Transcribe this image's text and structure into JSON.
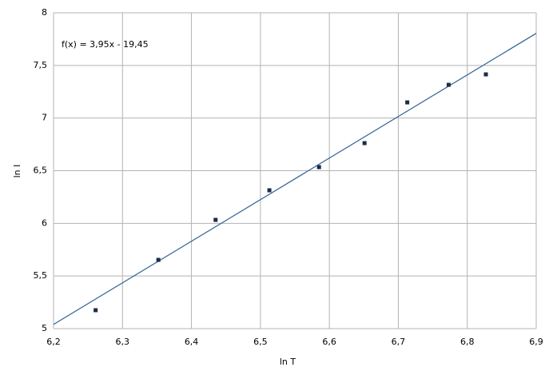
{
  "chart_data": {
    "type": "scatter",
    "annotation": "f(x) = 3,95x - 19,45",
    "xlabel": "ln T",
    "ylabel": "ln I",
    "xlim": [
      6.2,
      6.9
    ],
    "ylim": [
      5,
      8
    ],
    "xticks": [
      {
        "value": 6.2,
        "label": "6,2"
      },
      {
        "value": 6.3,
        "label": "6,3"
      },
      {
        "value": 6.4,
        "label": "6,4"
      },
      {
        "value": 6.5,
        "label": "6,5"
      },
      {
        "value": 6.6,
        "label": "6,6"
      },
      {
        "value": 6.7,
        "label": "6,7"
      },
      {
        "value": 6.8,
        "label": "6,8"
      },
      {
        "value": 6.9,
        "label": "6,9"
      }
    ],
    "yticks": [
      5,
      {
        "value": 5.5,
        "label": "5,5"
      },
      6,
      {
        "value": 6.5,
        "label": "6,5"
      },
      7,
      {
        "value": 7.5,
        "label": "7,5"
      },
      8
    ],
    "grid": true,
    "series": [
      {
        "type": "scatter",
        "color": "#1b2b4b",
        "x": [
          6.261,
          6.352,
          6.435,
          6.513,
          6.585,
          6.651,
          6.713,
          6.773,
          6.827
        ],
        "values": [
          5.175,
          5.653,
          6.033,
          6.314,
          6.534,
          6.762,
          7.149,
          7.316,
          7.415
        ]
      },
      {
        "type": "line",
        "color": "#2e6294",
        "x": [
          6.2,
          6.9
        ],
        "values": [
          5.04,
          7.805
        ]
      }
    ]
  }
}
